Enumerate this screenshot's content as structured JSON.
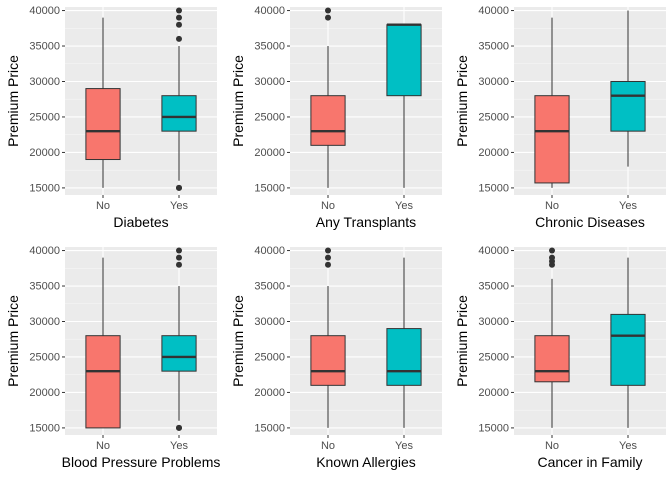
{
  "chart_data": [
    {
      "type": "box",
      "ylabel": "Premium Price",
      "xlabel": "Diabetes",
      "categories": [
        "No",
        "Yes"
      ],
      "ylim": [
        14000,
        40500
      ],
      "yticks": [
        15000,
        20000,
        25000,
        30000,
        35000,
        40000
      ],
      "ytick_labels": [
        "15000",
        "20000",
        "25000",
        "30000",
        "35000",
        "40000"
      ],
      "boxes": [
        {
          "category": "No",
          "color": "#F8766D",
          "min": 15000,
          "q1": 19000,
          "median": 23000,
          "q3": 29000,
          "max": 39000,
          "outliers": []
        },
        {
          "category": "Yes",
          "color": "#00BFC4",
          "min": 16000,
          "q1": 23000,
          "median": 25000,
          "q3": 28000,
          "max": 35000,
          "outliers": [
            15000,
            15000,
            36000,
            38000,
            39000,
            40000
          ]
        }
      ]
    },
    {
      "type": "box",
      "ylabel": "Premium Price",
      "xlabel": "Any Transplants",
      "categories": [
        "No",
        "Yes"
      ],
      "ylim": [
        14000,
        40500
      ],
      "yticks": [
        15000,
        20000,
        25000,
        30000,
        35000,
        40000
      ],
      "ytick_labels": [
        "15000",
        "20000",
        "25000",
        "30000",
        "35000",
        "40000"
      ],
      "boxes": [
        {
          "category": "No",
          "color": "#F8766D",
          "min": 15000,
          "q1": 21000,
          "median": 23000,
          "q3": 28000,
          "max": 35000,
          "outliers": [
            39000,
            40000
          ]
        },
        {
          "category": "Yes",
          "color": "#00BFC4",
          "min": 15000,
          "q1": 28000,
          "median": 38000,
          "q3": 38000,
          "max": 38000,
          "outliers": []
        }
      ]
    },
    {
      "type": "box",
      "ylabel": "Premium Price",
      "xlabel": "Chronic Diseases",
      "categories": [
        "No",
        "Yes"
      ],
      "ylim": [
        14000,
        40500
      ],
      "yticks": [
        15000,
        20000,
        25000,
        30000,
        35000,
        40000
      ],
      "ytick_labels": [
        "15000",
        "20000",
        "25000",
        "30000",
        "35000",
        "40000"
      ],
      "boxes": [
        {
          "category": "No",
          "color": "#F8766D",
          "min": 15000,
          "q1": 15700,
          "median": 23000,
          "q3": 28000,
          "max": 39000,
          "outliers": []
        },
        {
          "category": "Yes",
          "color": "#00BFC4",
          "min": 18000,
          "q1": 23000,
          "median": 28000,
          "q3": 30000,
          "max": 40000,
          "outliers": []
        }
      ]
    },
    {
      "type": "box",
      "ylabel": "Premium Price",
      "xlabel": "Blood Pressure Problems",
      "categories": [
        "No",
        "Yes"
      ],
      "ylim": [
        14000,
        40500
      ],
      "yticks": [
        15000,
        20000,
        25000,
        30000,
        35000,
        40000
      ],
      "ytick_labels": [
        "15000",
        "20000",
        "25000",
        "30000",
        "35000",
        "40000"
      ],
      "boxes": [
        {
          "category": "No",
          "color": "#F8766D",
          "min": 15000,
          "q1": 15000,
          "median": 23000,
          "q3": 28000,
          "max": 39000,
          "outliers": []
        },
        {
          "category": "Yes",
          "color": "#00BFC4",
          "min": 16000,
          "q1": 23000,
          "median": 25000,
          "q3": 28000,
          "max": 35000,
          "outliers": [
            15000,
            15000,
            38000,
            39000,
            40000
          ]
        }
      ]
    },
    {
      "type": "box",
      "ylabel": "Premium Price",
      "xlabel": "Known Allergies",
      "categories": [
        "No",
        "Yes"
      ],
      "ylim": [
        14000,
        40500
      ],
      "yticks": [
        15000,
        20000,
        25000,
        30000,
        35000,
        40000
      ],
      "ytick_labels": [
        "15000",
        "20000",
        "25000",
        "30000",
        "35000",
        "40000"
      ],
      "boxes": [
        {
          "category": "No",
          "color": "#F8766D",
          "min": 15000,
          "q1": 21000,
          "median": 23000,
          "q3": 28000,
          "max": 35000,
          "outliers": [
            38000,
            39000,
            40000
          ]
        },
        {
          "category": "Yes",
          "color": "#00BFC4",
          "min": 15000,
          "q1": 21000,
          "median": 23000,
          "q3": 29000,
          "max": 39000,
          "outliers": []
        }
      ]
    },
    {
      "type": "box",
      "ylabel": "Premium Price",
      "xlabel": "Cancer in Family",
      "categories": [
        "No",
        "Yes"
      ],
      "ylim": [
        14000,
        40500
      ],
      "yticks": [
        15000,
        20000,
        25000,
        30000,
        35000,
        40000
      ],
      "ytick_labels": [
        "15000",
        "20000",
        "25000",
        "30000",
        "35000",
        "40000"
      ],
      "boxes": [
        {
          "category": "No",
          "color": "#F8766D",
          "min": 15000,
          "q1": 21500,
          "median": 23000,
          "q3": 28000,
          "max": 36000,
          "outliers": [
            38000,
            38500,
            39000,
            40000
          ]
        },
        {
          "category": "Yes",
          "color": "#00BFC4",
          "min": 15000,
          "q1": 21000,
          "median": 28000,
          "q3": 31000,
          "max": 39000,
          "outliers": []
        }
      ]
    }
  ]
}
